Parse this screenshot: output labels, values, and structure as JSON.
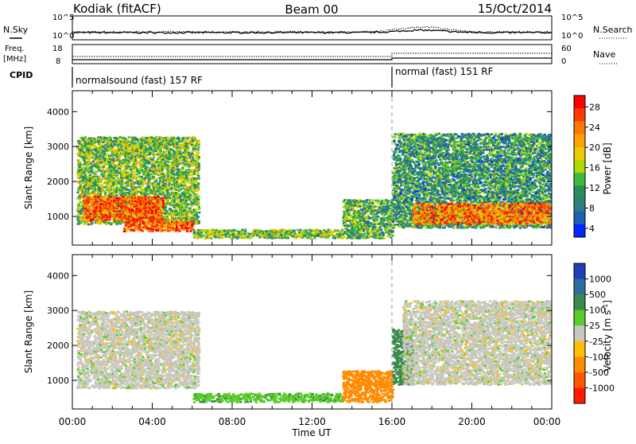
{
  "header": {
    "station": "Kodiak (fitACF)",
    "beam": "Beam 00",
    "date": "15/Oct/2014"
  },
  "strip1": {
    "left_label": "N.Sky",
    "right_label": "N.Search",
    "ticks_left": [
      "10^5",
      "10^0"
    ],
    "ticks_right": [
      "10^5",
      "10^0"
    ]
  },
  "strip2": {
    "left_label_line1": "Freq.",
    "left_label_line2": "[MHz]",
    "right_label": "Nave",
    "ticks_left": [
      "18",
      "8"
    ],
    "ticks_right": [
      "60",
      "0"
    ]
  },
  "cpid": {
    "label": "CPID",
    "segments": [
      {
        "label": "normalsound (fast) 157 RF",
        "start_hour": 0
      },
      {
        "label": "normal (fast) 151 RF",
        "start_hour": 16
      }
    ]
  },
  "x_axis": {
    "title": "Time UT",
    "tick_labels": [
      "00:00",
      "04:00",
      "08:00",
      "12:00",
      "16:00",
      "20:00",
      "00:00"
    ],
    "range_hours": [
      0,
      24
    ]
  },
  "chart_data": [
    {
      "type": "heatmap",
      "quantity": "Power",
      "ylabel": "Slant Range [km]",
      "xlabel": "Time UT",
      "xlim_hours": [
        0,
        24
      ],
      "ylim_km": [
        180,
        4600
      ],
      "y_ticks": [
        "1000",
        "2000",
        "3000",
        "4000"
      ],
      "colorbar": {
        "label": "Power [dB]",
        "tick_labels": [
          "28",
          "24",
          "20",
          "16",
          "12",
          "8",
          "4"
        ],
        "colors": [
          "#ff0000",
          "#ff3a00",
          "#ff7800",
          "#ff9f00",
          "#e6cc00",
          "#b0d800",
          "#3dbb3d",
          "#288f5a",
          "#2f7e7e",
          "#1f5fb0",
          "#0028ff"
        ]
      },
      "regions": [
        {
          "t": [
            0.2,
            6.3
          ],
          "r": [
            800,
            3300
          ],
          "value_db": 14
        },
        {
          "t": [
            0.5,
            4.5
          ],
          "r": [
            900,
            1600
          ],
          "value_db": 26
        },
        {
          "t": [
            2.5,
            6.0
          ],
          "r": [
            600,
            900
          ],
          "value_db": 26
        },
        {
          "t": [
            6.0,
            13.5
          ],
          "r": [
            400,
            650
          ],
          "value_db": 14
        },
        {
          "t": [
            13.5,
            16.0
          ],
          "r": [
            400,
            1500
          ],
          "value_db": 12
        },
        {
          "t": [
            16.0,
            24.0
          ],
          "r": [
            700,
            3400
          ],
          "value_db": 10
        },
        {
          "t": [
            17.0,
            24.0
          ],
          "r": [
            800,
            1400
          ],
          "value_db": 24
        }
      ]
    },
    {
      "type": "heatmap",
      "quantity": "Velocity",
      "ylabel": "Slant Range [km]",
      "xlabel": "Time UT",
      "xlim_hours": [
        0,
        24
      ],
      "ylim_km": [
        180,
        4600
      ],
      "y_ticks": [
        "1000",
        "2000",
        "3000",
        "4000"
      ],
      "colorbar": {
        "label_text": "Velocity [m s",
        "label_sup": "-1",
        "label_end": "]",
        "tick_labels": [
          "1000",
          "500",
          "100",
          "25",
          "-25",
          "-100",
          "-500",
          "-1000"
        ],
        "colors": [
          "#1f3fb8",
          "#2e6fa0",
          "#3c8a4a",
          "#5ccc2c",
          "#c8c8c0",
          "#ffbf00",
          "#ff8c00",
          "#ff5a00",
          "#ff1a00"
        ]
      },
      "regions": [
        {
          "t": [
            0.2,
            6.3
          ],
          "r": [
            800,
            3000
          ],
          "value_ms": 0
        },
        {
          "t": [
            6.0,
            13.5
          ],
          "r": [
            400,
            650
          ],
          "value_ms": 80
        },
        {
          "t": [
            13.5,
            16.0
          ],
          "r": [
            400,
            1300
          ],
          "value_ms": -150
        },
        {
          "t": [
            16.0,
            17.0
          ],
          "r": [
            900,
            2500
          ],
          "value_ms": 150
        },
        {
          "t": [
            16.5,
            24.0
          ],
          "r": [
            900,
            3300
          ],
          "value_ms": 0
        }
      ]
    }
  ]
}
